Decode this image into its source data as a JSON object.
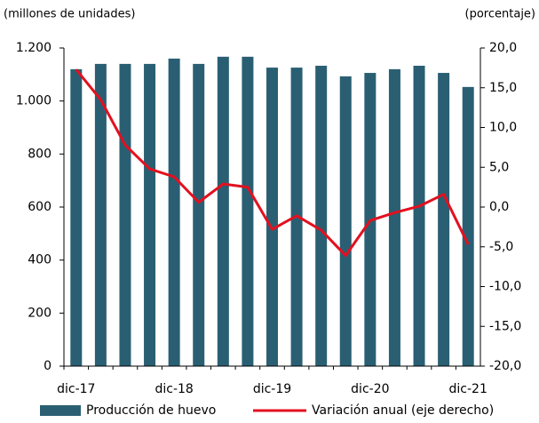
{
  "chart_data": {
    "type": "bar",
    "y_label": "(millones  de unidades)",
    "y2_label": "(porcentaje)",
    "categories": [
      "dic-17",
      null,
      null,
      null,
      "dic-18",
      null,
      null,
      null,
      "dic-19",
      null,
      null,
      null,
      "dic-20",
      null,
      null,
      null,
      "dic-21"
    ],
    "series": [
      {
        "name": "Producción de huevo",
        "type": "bar",
        "color": "#2a5f73",
        "values": [
          1120,
          1140,
          1140,
          1140,
          1160,
          1140,
          1167,
          1167,
          1126,
          1126,
          1133,
          1093,
          1106,
          1120,
          1133,
          1106,
          1053
        ]
      },
      {
        "name": "Variación anual (eje derecho)",
        "type": "line",
        "axis": "y2",
        "color": "#e3101f",
        "values": [
          17.3,
          13.5,
          7.8,
          4.8,
          3.8,
          0.6,
          2.9,
          2.5,
          -2.8,
          -1.1,
          -2.9,
          -6.1,
          -1.7,
          -0.7,
          0.1,
          1.6,
          -4.7
        ]
      }
    ],
    "ylim": [
      0,
      1200
    ],
    "yticks": [
      0,
      200,
      400,
      600,
      800,
      {
        "value": 1000,
        "label": "1.000"
      },
      {
        "value": 1200,
        "label": "1.200"
      }
    ],
    "y2lim": [
      -20,
      20
    ],
    "y2ticks": [
      {
        "value": -20,
        "label": "-20,0"
      },
      {
        "value": -15,
        "label": "-15,0"
      },
      {
        "value": -10,
        "label": "-10,0"
      },
      {
        "value": -5,
        "label": "-5,0"
      },
      {
        "value": 0,
        "label": "0,0"
      },
      {
        "value": 5,
        "label": "5,0"
      },
      {
        "value": 10,
        "label": "10,0"
      },
      {
        "value": 15,
        "label": "15,0"
      },
      {
        "value": 20,
        "label": "20,0"
      }
    ],
    "legend": "bottom"
  }
}
